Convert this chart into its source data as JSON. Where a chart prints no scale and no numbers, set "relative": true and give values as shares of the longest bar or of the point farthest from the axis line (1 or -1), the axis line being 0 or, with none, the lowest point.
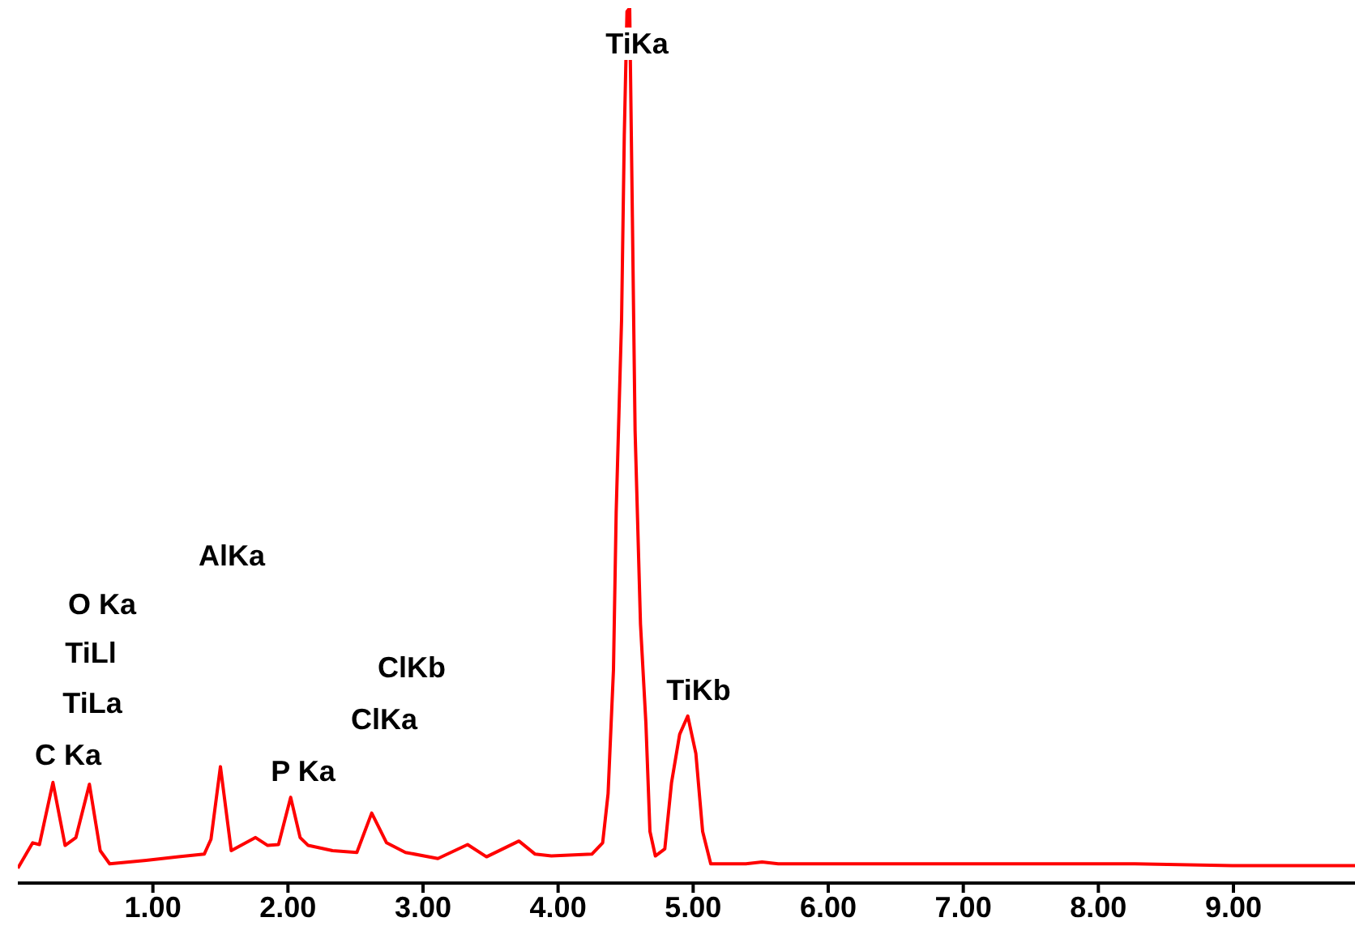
{
  "chart_data": {
    "type": "line",
    "relative": true,
    "color": "#ff0000",
    "marker": "none",
    "grid": false,
    "legend": false,
    "tick_labels": "x",
    "xlim": [
      0,
      9.9
    ],
    "xticks": [
      {
        "value": 1,
        "label": "1.00"
      },
      {
        "value": 2,
        "label": "2.00"
      },
      {
        "value": 3,
        "label": "3.00"
      },
      {
        "value": 4,
        "label": "4.00"
      },
      {
        "value": 5,
        "label": "5.00"
      },
      {
        "value": 6,
        "label": "6.00"
      },
      {
        "value": 7,
        "label": "7.00"
      },
      {
        "value": 8,
        "label": "8.00"
      },
      {
        "value": 9,
        "label": "9.00"
      }
    ],
    "x": [
      0,
      0.11,
      0.16,
      0.26,
      0.35,
      0.43,
      0.53,
      0.61,
      0.68,
      0.95,
      1.19,
      1.38,
      1.43,
      1.5,
      1.58,
      1.76,
      1.85,
      1.93,
      2.02,
      2.09,
      2.15,
      2.33,
      2.51,
      2.62,
      2.73,
      2.87,
      3.11,
      3.33,
      3.47,
      3.71,
      3.83,
      3.95,
      4.25,
      4.33,
      4.37,
      4.41,
      4.43,
      4.47,
      4.49,
      4.51,
      4.53,
      4.55,
      4.57,
      4.61,
      4.65,
      4.68,
      4.72,
      4.79,
      4.84,
      4.9,
      4.96,
      5.02,
      5.07,
      5.13,
      5.39,
      5.51,
      5.63,
      7.07,
      8.27,
      8.99,
      9.9
    ],
    "values": [
      0.017,
      0.046,
      0.044,
      0.115,
      0.043,
      0.052,
      0.113,
      0.037,
      0.022,
      0.026,
      0.03,
      0.033,
      0.05,
      0.133,
      0.037,
      0.052,
      0.043,
      0.044,
      0.098,
      0.052,
      0.043,
      0.037,
      0.035,
      0.08,
      0.046,
      0.035,
      0.028,
      0.044,
      0.03,
      0.048,
      0.033,
      0.031,
      0.033,
      0.046,
      0.102,
      0.244,
      0.424,
      0.644,
      0.854,
      0.996,
      1,
      0.761,
      0.517,
      0.296,
      0.183,
      0.059,
      0.031,
      0.039,
      0.115,
      0.17,
      0.191,
      0.148,
      0.059,
      0.022,
      0.022,
      0.024,
      0.022,
      0.022,
      0.022,
      0.02,
      0.02
    ],
    "annotations": [
      "TiKa",
      "AlKa",
      "O Ka",
      "TiLl",
      "TiLa",
      "C Ka",
      "P Ka",
      "ClKb",
      "ClKa",
      "TiKb"
    ]
  }
}
